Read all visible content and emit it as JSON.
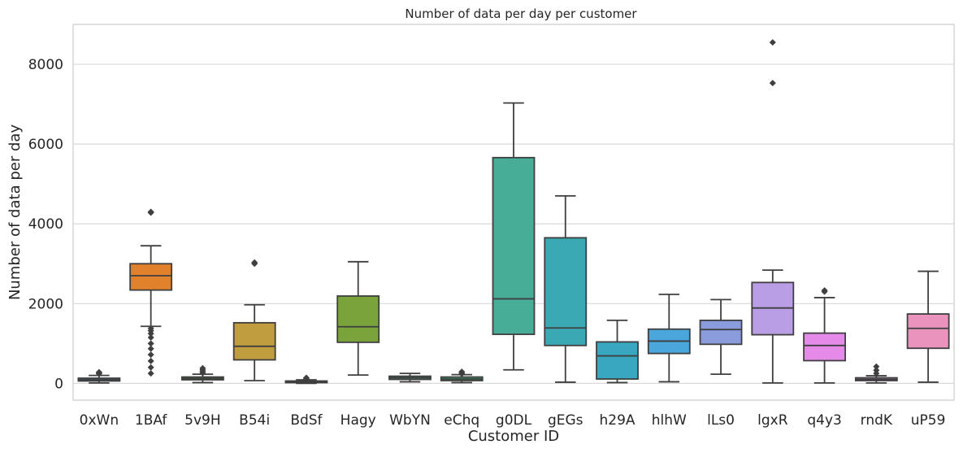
{
  "chart_data": {
    "type": "box",
    "title": "Number of data per day per customer",
    "xlabel": "Customer ID",
    "ylabel": "Number of data per day",
    "ylim": [
      -420,
      9000
    ],
    "yticks": [
      0,
      2000,
      4000,
      6000,
      8000
    ],
    "grid": "horizontal",
    "categories": [
      "0xWn",
      "1BAf",
      "5v9H",
      "B54i",
      "BdSf",
      "Hagy",
      "WbYN",
      "eChq",
      "g0DL",
      "gEGs",
      "h29A",
      "hlhW",
      "lLs0",
      "lgxR",
      "q4y3",
      "rndK",
      "uP59"
    ],
    "colors": [
      "#3274a1",
      "#e1812c",
      "#3a923a",
      "#c03d3e",
      "#9372b2",
      "#845b53",
      "#d684bd",
      "#7f7f7f",
      "#3ba89b",
      "#3aa3ad",
      "#3a9ab8",
      "#4ba6dc",
      "#8b8fd6",
      "#b99ee6",
      "#e58ae9",
      "#e48ad6",
      "#e993bd"
    ],
    "box_colors": [
      "#3274a1",
      "#e1812c",
      "#3a923a",
      "#c09d3e",
      "#3a923a",
      "#7aa33c",
      "#3a9e6a",
      "#3ba87a",
      "#47ad96",
      "#3aa9b3",
      "#3aa7c0",
      "#4ba6dc",
      "#8b9cdc",
      "#b99ee6",
      "#e58ae9",
      "#e48ad6",
      "#e993bd"
    ],
    "boxes": [
      {
        "whisker_low": 10,
        "q1": 60,
        "median": 90,
        "q3": 130,
        "whisker_high": 200,
        "outliers": [
          240,
          260,
          280
        ]
      },
      {
        "whisker_low": 1430,
        "q1": 2340,
        "median": 2700,
        "q3": 3000,
        "whisker_high": 3450,
        "outliers": [
          1380,
          1320,
          1250,
          1150,
          1000,
          870,
          720,
          560,
          400,
          250,
          4280,
          4300
        ]
      },
      {
        "whisker_low": 20,
        "q1": 90,
        "median": 120,
        "q3": 160,
        "whisker_high": 230,
        "outliers": [
          260,
          300,
          340,
          380
        ]
      },
      {
        "whisker_low": 70,
        "q1": 590,
        "median": 930,
        "q3": 1520,
        "whisker_high": 1970,
        "outliers": [
          3000,
          3030
        ]
      },
      {
        "whisker_low": 0,
        "q1": 20,
        "median": 40,
        "q3": 60,
        "whisker_high": 90,
        "outliers": [
          100,
          120,
          140
        ]
      },
      {
        "whisker_low": 210,
        "q1": 1030,
        "median": 1420,
        "q3": 2190,
        "whisker_high": 3050,
        "outliers": []
      },
      {
        "whisker_low": 40,
        "q1": 100,
        "median": 140,
        "q3": 180,
        "whisker_high": 250,
        "outliers": []
      },
      {
        "whisker_low": 20,
        "q1": 70,
        "median": 110,
        "q3": 160,
        "whisker_high": 220,
        "outliers": [
          240,
          270,
          290
        ]
      },
      {
        "whisker_low": 340,
        "q1": 1230,
        "median": 2120,
        "q3": 5660,
        "whisker_high": 7030,
        "outliers": []
      },
      {
        "whisker_low": 30,
        "q1": 950,
        "median": 1390,
        "q3": 3650,
        "whisker_high": 4700,
        "outliers": []
      },
      {
        "whisker_low": 20,
        "q1": 110,
        "median": 690,
        "q3": 1040,
        "whisker_high": 1580,
        "outliers": []
      },
      {
        "whisker_low": 40,
        "q1": 750,
        "median": 1060,
        "q3": 1360,
        "whisker_high": 2230,
        "outliers": []
      },
      {
        "whisker_low": 230,
        "q1": 980,
        "median": 1350,
        "q3": 1580,
        "whisker_high": 2100,
        "outliers": []
      },
      {
        "whisker_low": 10,
        "q1": 1220,
        "median": 1890,
        "q3": 2530,
        "whisker_high": 2840,
        "outliers": [
          7530,
          8550
        ]
      },
      {
        "whisker_low": 10,
        "q1": 570,
        "median": 950,
        "q3": 1260,
        "whisker_high": 2150,
        "outliers": [
          2300,
          2330
        ]
      },
      {
        "whisker_low": 10,
        "q1": 70,
        "median": 100,
        "q3": 140,
        "whisker_high": 190,
        "outliers": [
          250,
          330,
          420
        ]
      },
      {
        "whisker_low": 30,
        "q1": 880,
        "median": 1380,
        "q3": 1740,
        "whisker_high": 2810,
        "outliers": []
      }
    ]
  }
}
